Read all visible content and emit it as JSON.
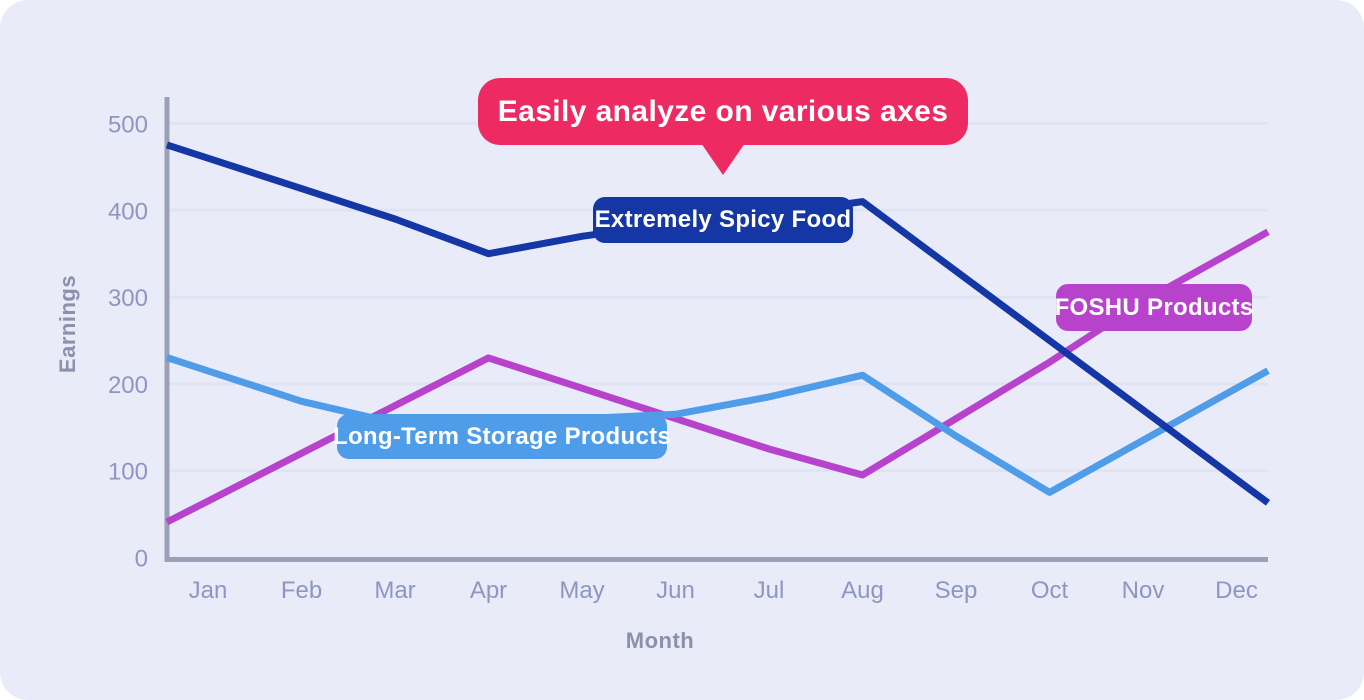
{
  "callout": {
    "text": "Easily analyze on various axes",
    "color": "#EE2A62"
  },
  "chart_data": {
    "type": "line",
    "x": [
      "Jan",
      "Feb",
      "Mar",
      "Apr",
      "May",
      "Jun",
      "Jul",
      "Aug",
      "Sep",
      "Oct",
      "Nov",
      "Dec"
    ],
    "xlabel": "Month",
    "ylabel": "Earnings",
    "ylim": [
      0,
      500
    ],
    "yticks": [
      0,
      100,
      200,
      300,
      400,
      500
    ],
    "grid": "horizontal-only",
    "legend": "inline-badges-on-lines",
    "annotation": "Easily analyze on various axes",
    "series": [
      {
        "name": "Extremely Spicy Food",
        "color": "#1537A6",
        "values": [
          460,
          425,
          390,
          350,
          370,
          385,
          395,
          410,
          330,
          250,
          170,
          90
        ]
      },
      {
        "name": "Long-Term Storage Products",
        "color": "#4F9DE9",
        "values": [
          215,
          180,
          155,
          155,
          160,
          165,
          185,
          210,
          140,
          75,
          135,
          195
        ]
      },
      {
        "name": "FOSHU Products",
        "color": "#B742CC",
        "values": [
          65,
          120,
          175,
          230,
          195,
          160,
          125,
          95,
          160,
          225,
          295,
          355
        ]
      }
    ],
    "style": {
      "background": "#E9EBF8",
      "axis_color": "#9AA1B6",
      "grid_color": "#DFE3F2",
      "tick_label_color": "#8E96C1",
      "axis_title_color": "#8B91AC",
      "line_width": 7
    }
  }
}
